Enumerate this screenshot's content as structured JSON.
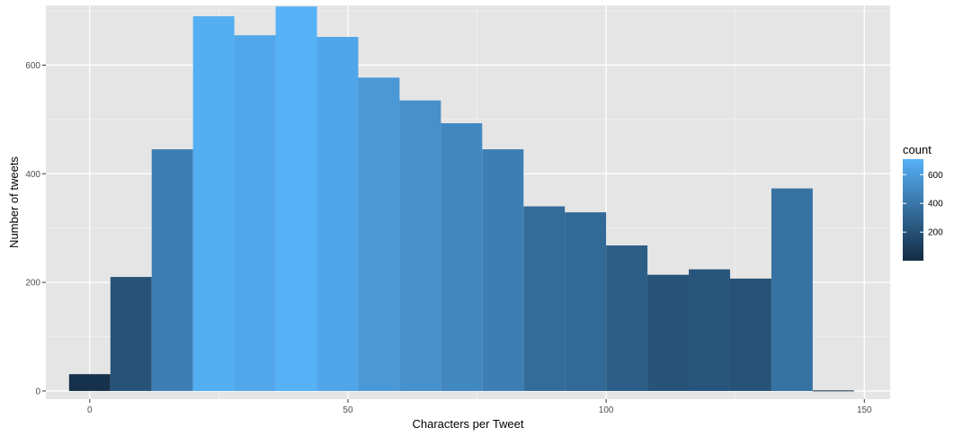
{
  "chart_data": {
    "type": "bar",
    "subtype": "histogram",
    "xlabel": "Characters per Tweet",
    "ylabel": "Number of tweets",
    "xlim": [
      -8.5,
      155
    ],
    "ylim": [
      -15,
      710
    ],
    "x_ticks": [
      0,
      50,
      100,
      150
    ],
    "y_ticks": [
      0,
      200,
      400,
      600
    ],
    "grid": true,
    "bin_width": 8,
    "bins": [
      {
        "start": -4,
        "end": 4,
        "count": 31
      },
      {
        "start": 4,
        "end": 12,
        "count": 210
      },
      {
        "start": 12,
        "end": 20,
        "count": 445
      },
      {
        "start": 20,
        "end": 28,
        "count": 690
      },
      {
        "start": 28,
        "end": 36,
        "count": 655
      },
      {
        "start": 36,
        "end": 44,
        "count": 708
      },
      {
        "start": 44,
        "end": 52,
        "count": 652
      },
      {
        "start": 52,
        "end": 60,
        "count": 577
      },
      {
        "start": 60,
        "end": 68,
        "count": 535
      },
      {
        "start": 68,
        "end": 76,
        "count": 493
      },
      {
        "start": 76,
        "end": 84,
        "count": 445
      },
      {
        "start": 84,
        "end": 92,
        "count": 340
      },
      {
        "start": 92,
        "end": 100,
        "count": 329
      },
      {
        "start": 100,
        "end": 108,
        "count": 268
      },
      {
        "start": 108,
        "end": 116,
        "count": 214
      },
      {
        "start": 116,
        "end": 124,
        "count": 224
      },
      {
        "start": 124,
        "end": 132,
        "count": 207
      },
      {
        "start": 132,
        "end": 140,
        "count": 373
      },
      {
        "start": 140,
        "end": 148,
        "count": 1
      }
    ],
    "legend": {
      "title": "count",
      "placement": "right",
      "range": [
        1,
        708
      ],
      "ticks": [
        200,
        400,
        600
      ],
      "color_low": "#132B43",
      "color_high": "#56B1F7"
    },
    "colors": {
      "panel_background": "#e5e5e5",
      "grid_major": "#ffffff",
      "grid_minor": "#f2f2f2"
    }
  }
}
